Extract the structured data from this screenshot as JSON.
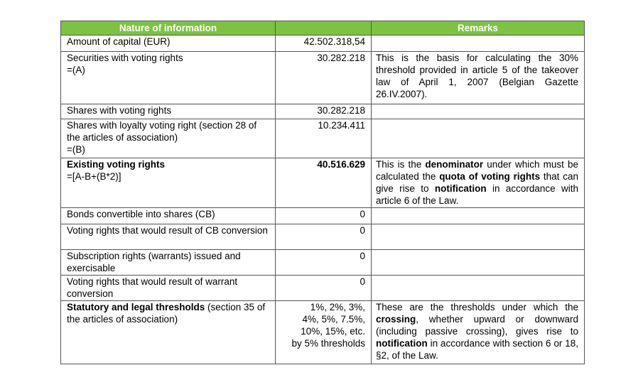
{
  "table": {
    "header": {
      "nature": "Nature of information",
      "remarks": "Remarks"
    },
    "rows": [
      {
        "label": [
          [
            {
              "text": "Amount of capital (EUR)"
            }
          ]
        ],
        "value": [
          [
            {
              "text": "42.502.318,54"
            }
          ]
        ]
      },
      {
        "label": [
          [
            {
              "text": "Securities with voting rights"
            }
          ],
          [
            {
              "text": "=(A)"
            }
          ]
        ],
        "value": [
          [
            {
              "text": "30.282.218"
            }
          ]
        ],
        "remarks": [
          [
            {
              "text": "This is the basis for calculating the 30% threshold provided in article 5 of the takeover law of April 1, 2007 (Belgian Gazette 26.IV.2007)."
            }
          ]
        ]
      },
      {
        "label": [
          [
            {
              "text": "Shares with voting rights"
            }
          ]
        ],
        "value": [
          [
            {
              "text": "30.282.218"
            }
          ]
        ]
      },
      {
        "label": [
          [
            {
              "text": "Shares with loyalty voting right (section 28 of the articles of association)"
            }
          ],
          [
            {
              "text": "=(B)"
            }
          ]
        ],
        "value": [
          [
            {
              "text": "10.234.411"
            }
          ]
        ]
      },
      {
        "label": [
          [
            {
              "text": "Existing voting rights",
              "bold": true
            }
          ],
          [
            {
              "text": "=[A-B+(B*2)]"
            }
          ]
        ],
        "value": [
          [
            {
              "text": "40.516.629",
              "bold": true
            }
          ]
        ],
        "remarks": [
          [
            {
              "text": "This is the "
            },
            {
              "text": "denominator",
              "bold": true
            },
            {
              "text": " under which must be calculated the "
            },
            {
              "text": "quota of voting rights",
              "bold": true
            },
            {
              "text": " that can give rise to "
            },
            {
              "text": "notification",
              "bold": true
            },
            {
              "text": " in accordance with article 6 of the Law."
            }
          ]
        ]
      },
      {
        "label": [
          [
            {
              "text": "Bonds convertible into shares (CB)"
            }
          ]
        ],
        "value": [
          [
            {
              "text": "0"
            }
          ]
        ]
      },
      {
        "label": [
          [
            {
              "text": "Voting rights that would result of CB conversion"
            }
          ]
        ],
        "value": [
          [
            {
              "text": "0"
            }
          ]
        ]
      },
      {
        "label": [
          [
            {
              "text": "Subscription rights (warrants) issued and exercisable"
            }
          ]
        ],
        "value": [
          [
            {
              "text": "0"
            }
          ]
        ]
      },
      {
        "label": [
          [
            {
              "text": "Voting rights that would result of warrant conversion"
            }
          ]
        ],
        "value": [
          [
            {
              "text": "0"
            }
          ]
        ]
      },
      {
        "label": [
          [
            {
              "text": "Statutory and legal thresholds",
              "bold": true
            },
            {
              "text": " (section 35 of the articles of association)"
            }
          ]
        ],
        "value": [
          [
            {
              "text": "1%, 2%, 3%,"
            }
          ],
          [
            {
              "text": "4%, 5%, 7.5%,"
            }
          ],
          [
            {
              "text": "10%, 15%, etc."
            }
          ],
          [
            {
              "text": "by 5% thresholds"
            }
          ]
        ],
        "remarks": [
          [
            {
              "text": "These are the thresholds under which the "
            },
            {
              "text": "crossing",
              "bold": true
            },
            {
              "text": ", whether upward or downward (including passive crossing), gives rise to "
            },
            {
              "text": "notification",
              "bold": true
            },
            {
              "text": " in accordance with section 6 or 18, §2, of the Law."
            }
          ]
        ]
      }
    ]
  }
}
